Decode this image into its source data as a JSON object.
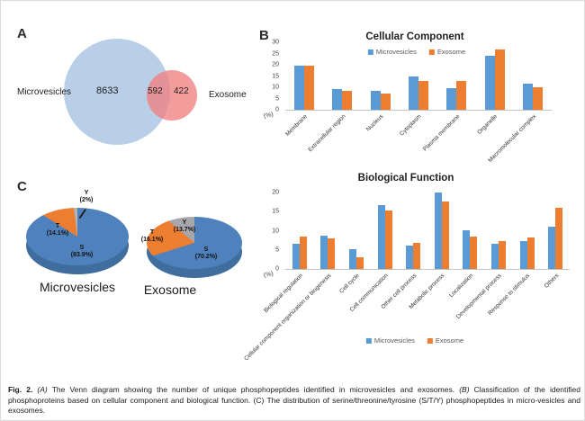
{
  "panels": {
    "a": "A",
    "b": "B",
    "c": "C"
  },
  "venn": {
    "left_label": "Microvesicles",
    "right_label": "Exosome",
    "left_value": "8633",
    "overlap_value": "592",
    "right_value": "422",
    "left_color": "#b9cfe8",
    "right_color": "#f08080"
  },
  "chart_data": [
    {
      "id": "cellular_component",
      "type": "bar",
      "title": "Cellular Component",
      "categories": [
        "Membrane",
        "Extracellular region",
        "Nucleus",
        "Cytoplasm",
        "Plasma membrane",
        "Organelle",
        "Macromolecular complex"
      ],
      "series": [
        {
          "name": "Microvesicles",
          "color": "#5b9bd5",
          "values": [
            19.5,
            9.3,
            8.4,
            14.7,
            9.8,
            24.2,
            11.6
          ]
        },
        {
          "name": "Exosome",
          "color": "#ed7d31",
          "values": [
            19.5,
            8.4,
            7.3,
            12.8,
            13.0,
            26.8,
            10.0
          ]
        }
      ],
      "ylabel": "(%)",
      "ylim": [
        0,
        30
      ],
      "yticks": [
        0,
        5,
        10,
        15,
        20,
        25,
        30
      ],
      "grid": false,
      "legend_position": "top"
    },
    {
      "id": "biological_function",
      "type": "bar",
      "title": "Biological Function",
      "categories": [
        "Biological regulation",
        "Cellular component organization or biogenesis",
        "Cell cycle",
        "Cell communication",
        "Other cell process",
        "Metabolic process",
        "Localization",
        "Developmental process",
        "Response to stimulus",
        "Others"
      ],
      "series": [
        {
          "name": "Microvesicles",
          "color": "#5b9bd5",
          "values": [
            6.6,
            8.6,
            5.1,
            16.6,
            6.1,
            20.0,
            10.1,
            6.6,
            7.4,
            11.1
          ]
        },
        {
          "name": "Exosome",
          "color": "#ed7d31",
          "values": [
            8.4,
            8.1,
            3.1,
            15.4,
            6.9,
            17.6,
            8.4,
            7.2,
            8.2,
            15.9
          ]
        }
      ],
      "ylabel": "(%)",
      "ylim": [
        0,
        20
      ],
      "yticks": [
        0,
        5,
        10,
        15,
        20
      ],
      "grid": false,
      "legend_position": "bottom"
    },
    {
      "id": "pie_microvesicles",
      "type": "pie",
      "title": "Microvesicles",
      "slices": [
        {
          "label": "S",
          "pct": 83.9,
          "text": "(83.9%)",
          "color": "#4f81bd"
        },
        {
          "label": "T",
          "pct": 14.1,
          "text": "(14.1%)",
          "color": "#ed7d31"
        },
        {
          "label": "Y",
          "pct": 2.0,
          "text": "(2%)",
          "color": "#b3b3b8"
        }
      ]
    },
    {
      "id": "pie_exosome",
      "type": "pie",
      "title": "Exosome",
      "slices": [
        {
          "label": "S",
          "pct": 70.2,
          "text": "(70.2%)",
          "color": "#4f81bd"
        },
        {
          "label": "T",
          "pct": 16.1,
          "text": "(16.1%)",
          "color": "#ed7d31"
        },
        {
          "label": "Y",
          "pct": 13.7,
          "text": "(13.7%)",
          "color": "#a6a6ab"
        }
      ]
    }
  ],
  "caption_parts": [
    {
      "style": "bold",
      "text": "Fig. 2."
    },
    {
      "style": "italic",
      "text": "  (A)"
    },
    {
      "style": "",
      "text": " The Venn diagram showing the number of unique phosphopeptides identified in microvesicles and exosomes. "
    },
    {
      "style": "italic",
      "text": "(B)"
    },
    {
      "style": "",
      "text": " Classification of the identified phosphoproteins based on cellular component and biological function. (C) The distribution of serine/threonine/tyrosine (S/T/Y) phosphopeptides in micro-vesicles and exosomes."
    }
  ]
}
